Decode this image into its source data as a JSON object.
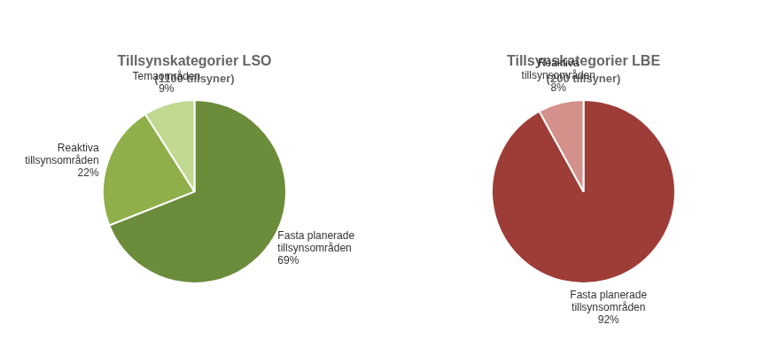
{
  "chart_data": [
    {
      "type": "pie",
      "title": "Tillsynskategorier LSO",
      "subtitle": "(1100 tillsyner)",
      "categories": [
        "Fasta planerade\ntillsynsområden",
        "Reaktiva\ntillsynsområden",
        "Temaområden"
      ],
      "values": [
        69,
        22,
        9
      ],
      "value_labels": [
        "69%",
        "22%",
        "9%"
      ],
      "colors": [
        "#6b8c3a",
        "#8faf4a",
        "#c0d890"
      ],
      "data_labels": true
    },
    {
      "type": "pie",
      "title": "Tillsynskategorier LBE",
      "subtitle": "(200 tillsyner)",
      "categories": [
        "Fasta planerade\ntillsynsområden",
        "Reaktiva\ntillsynsområden"
      ],
      "values": [
        92,
        8
      ],
      "value_labels": [
        "92%",
        "8%"
      ],
      "colors": [
        "#9e3d37",
        "#d4908a"
      ],
      "data_labels": true
    }
  ]
}
